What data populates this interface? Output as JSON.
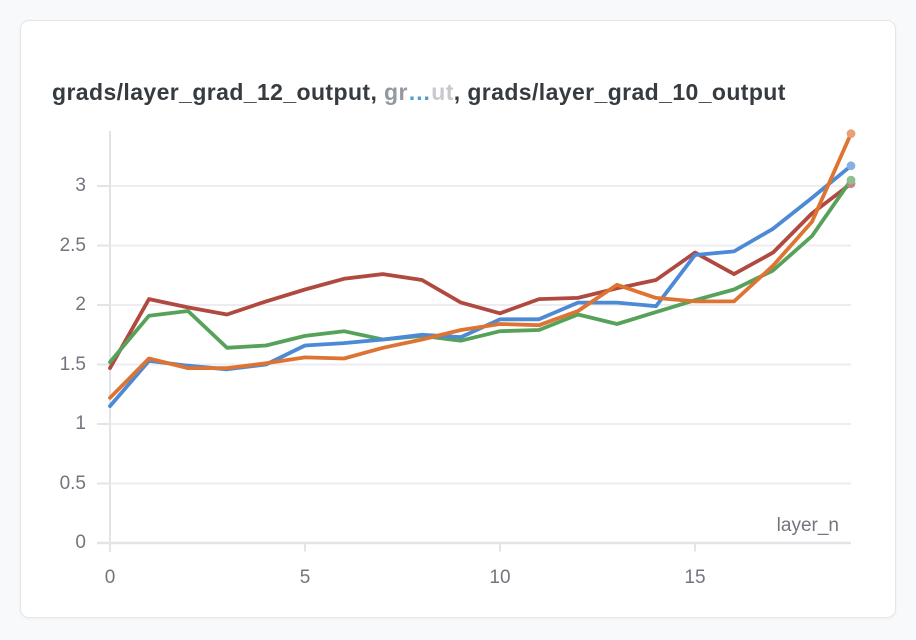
{
  "page": {
    "background": "#f8f9fa"
  },
  "panel": {
    "background": "#ffffff",
    "border_color": "#e3e5e9"
  },
  "title": {
    "full_text": "grads/layer_grad_12_output, gr…ut, grads/layer_grad_10_output",
    "segments": [
      {
        "text": "grads/layer_grad_12_output, ",
        "color": "#363b40",
        "name": "title-series-12-output"
      },
      {
        "text": "gr",
        "color": "#94999f",
        "name": "title-truncated-prefix"
      },
      {
        "text": "…",
        "color": "#4f9cd7",
        "name": "title-truncation-ellipsis"
      },
      {
        "text": "ut",
        "color": "#c6c9cd",
        "name": "title-truncated-suffix"
      },
      {
        "text": ", grads/layer_grad_10_output",
        "color": "#363b40",
        "name": "title-series-10-output"
      }
    ]
  },
  "axes": {
    "x_axis_label": "layer_n",
    "x_tick_labels": [
      "0",
      "5",
      "10",
      "15"
    ],
    "y_tick_labels": [
      "0",
      "0.5",
      "1",
      "1.5",
      "2",
      "2.5",
      "3"
    ]
  },
  "chart_data": {
    "type": "line",
    "title": "grads/layer_grad_12_output, gr…ut, grads/layer_grad_10_output",
    "xlabel": "layer_n",
    "ylabel": "",
    "xlim": [
      0,
      19
    ],
    "ylim": [
      0,
      3.5
    ],
    "x_ticks": [
      0,
      5,
      10,
      15
    ],
    "y_ticks": [
      0,
      0.5,
      1,
      1.5,
      2,
      2.5,
      3
    ],
    "grid": "horizontal",
    "legend_position": "none",
    "end_point_markers": true,
    "x": [
      0,
      1,
      2,
      3,
      4,
      5,
      6,
      7,
      8,
      9,
      10,
      11,
      12,
      13,
      14,
      15,
      16,
      17,
      18,
      19
    ],
    "series": [
      {
        "name": "red",
        "color": "#b0493f",
        "values": [
          1.47,
          2.05,
          1.98,
          1.92,
          2.03,
          2.13,
          2.22,
          2.26,
          2.21,
          2.02,
          1.93,
          2.05,
          2.06,
          2.14,
          2.21,
          2.44,
          2.26,
          2.44,
          2.77,
          3.02
        ]
      },
      {
        "name": "green",
        "color": "#57a25a",
        "values": [
          1.52,
          1.91,
          1.95,
          1.64,
          1.66,
          1.74,
          1.78,
          1.71,
          1.74,
          1.7,
          1.78,
          1.79,
          1.92,
          1.84,
          1.94,
          2.04,
          2.13,
          2.29,
          2.58,
          3.05
        ]
      },
      {
        "name": "blue",
        "color": "#4d8ad5",
        "values": [
          1.15,
          1.53,
          1.49,
          1.46,
          1.5,
          1.66,
          1.68,
          1.71,
          1.75,
          1.73,
          1.88,
          1.88,
          2.02,
          2.02,
          1.99,
          2.42,
          2.45,
          2.64,
          2.9,
          3.17
        ]
      },
      {
        "name": "orange",
        "color": "#de7433",
        "values": [
          1.22,
          1.55,
          1.47,
          1.47,
          1.51,
          1.56,
          1.55,
          1.64,
          1.71,
          1.79,
          1.84,
          1.83,
          1.95,
          2.17,
          2.06,
          2.03,
          2.03,
          2.33,
          2.7,
          3.44
        ]
      }
    ]
  }
}
